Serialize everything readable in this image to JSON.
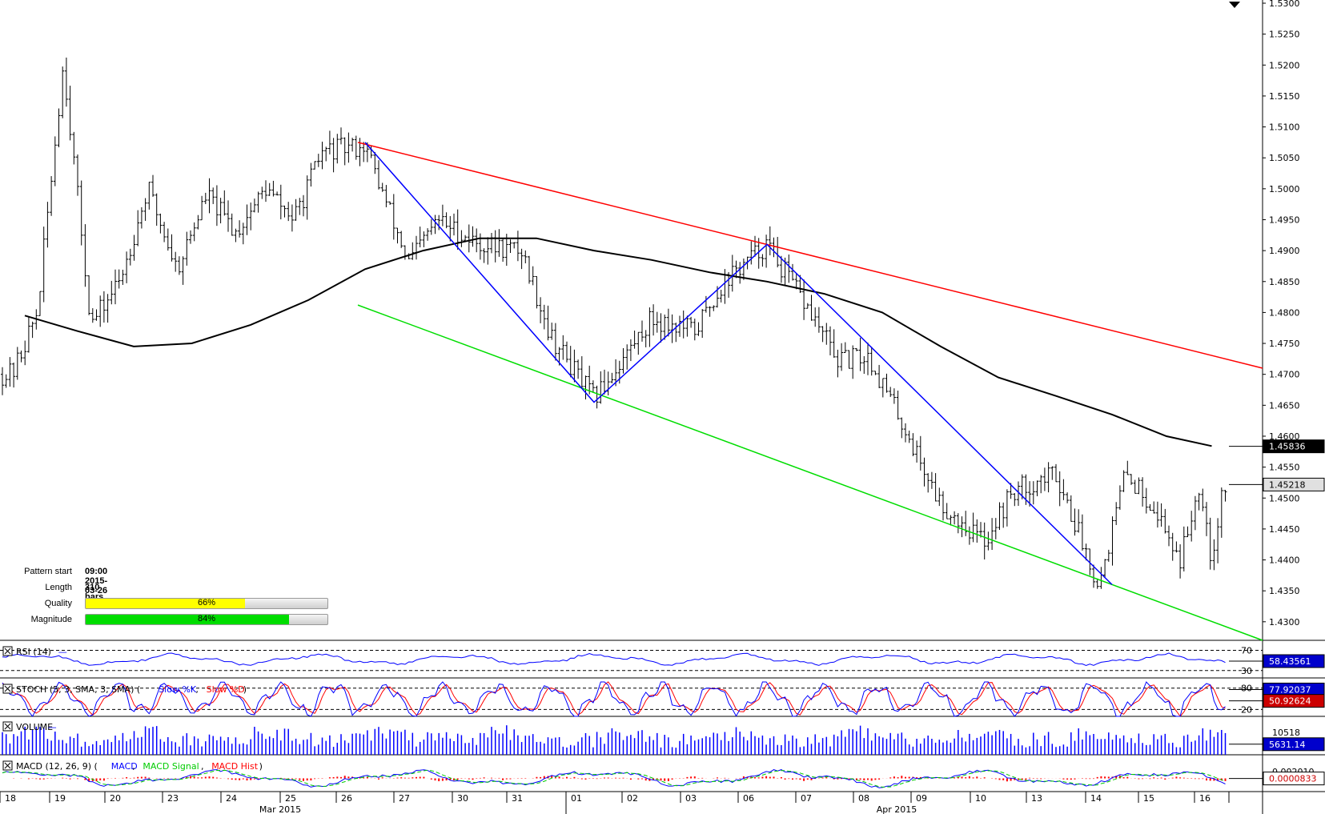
{
  "chart_data": {
    "type": "candlestick",
    "main": {
      "ylim": [
        1.427,
        1.53
      ],
      "y_ticks": [
        "1.5300",
        "1.5250",
        "1.5200",
        "1.5150",
        "1.5100",
        "1.5050",
        "1.5000",
        "1.4950",
        "1.4900",
        "1.4850",
        "1.4800",
        "1.4750",
        "1.4700",
        "1.4650",
        "1.4600",
        "1.4550",
        "1.4500",
        "1.4450",
        "1.4400",
        "1.4350",
        "1.4300"
      ],
      "last_price_label": "1.45218",
      "moving_average_label": "1.45836",
      "moving_average_color": "#000000",
      "resistance_line_color": "#ff0000",
      "support_line_color": "#00dd00",
      "zigzag_color": "#0000ff"
    },
    "pattern": {
      "start_label": "Pattern start",
      "start_value": "09:00 2015-03-26",
      "length_label": "Length",
      "length_value": "310 bars",
      "quality_label": "Quality",
      "quality_value": 66,
      "quality_text": "66%",
      "quality_color": "#ffff00",
      "magnitude_label": "Magnitude",
      "magnitude_value": 84,
      "magnitude_text": "84%",
      "magnitude_color": "#00dd00"
    },
    "indicators": {
      "rsi": {
        "title": "RSI (14)",
        "value": "58.43561",
        "levels": [
          "70",
          "30"
        ],
        "color": "#0000ff"
      },
      "stoch": {
        "title_prefix": "STOCH (5, 3, SMA, 3, SMA) (",
        "title_k": "Slow %K",
        "title_sep": ", ",
        "title_d": "Slow %D",
        "title_suffix": ")",
        "value_k": "77.92037",
        "value_d": "50.92624",
        "levels": [
          "80",
          "20"
        ],
        "k_color": "#0000ff",
        "d_color": "#ff0000"
      },
      "volume": {
        "title": "VOLUME",
        "value": "5631.14",
        "scale": "10518",
        "color": "#0000ff"
      },
      "macd": {
        "title_prefix": "MACD (12, 26, 9) (",
        "title_macd": "MACD",
        "title_sep1": ", ",
        "title_signal": "MACD Signal",
        "title_sep2": ", ",
        "title_hist": "MACD Hist",
        "title_suffix": ")",
        "value": "0.0000833",
        "scale": "0.002010",
        "macd_color": "#0000ff",
        "signal_color": "#00cc00",
        "hist_color": "#ff0000"
      }
    },
    "x_axis": {
      "day_labels": [
        "18",
        "19",
        "20",
        "23",
        "24",
        "25",
        "26",
        "27",
        "30",
        "31",
        "01",
        "02",
        "03",
        "06",
        "07",
        "08",
        "09",
        "10",
        "13",
        "14",
        "15",
        "16"
      ],
      "month_labels": [
        "Mar 2015",
        "Apr 2015"
      ]
    },
    "guide_lines": [
      {
        "name": "resistance",
        "from": [
          "2015-03-26 09:00",
          1.5075
        ],
        "to": [
          "2015-04-16 end",
          1.471
        ]
      },
      {
        "name": "support",
        "from": [
          "2015-03-26 09:00",
          1.4812
        ],
        "to": [
          "2015-04-16 end",
          1.427
        ]
      },
      {
        "name": "zigzag",
        "points": [
          [
            "2015-03-26",
            1.5075
          ],
          [
            "2015-04-01",
            1.4655
          ],
          [
            "2015-04-06",
            1.491
          ],
          [
            "2015-04-14",
            1.436
          ]
        ]
      }
    ],
    "price_path_anchors": [
      [
        "2015-03-18",
        1.47
      ],
      [
        "2015-03-18",
        1.48
      ],
      [
        "2015-03-19",
        1.5205
      ],
      [
        "2015-03-19",
        1.478
      ],
      [
        "2015-03-20",
        1.485
      ],
      [
        "2015-03-20",
        1.5
      ],
      [
        "2015-03-23",
        1.487
      ],
      [
        "2015-03-23",
        1.499
      ],
      [
        "2015-03-24",
        1.493
      ],
      [
        "2015-03-24",
        1.5
      ],
      [
        "2015-03-25",
        1.495
      ],
      [
        "2015-03-25",
        1.506
      ],
      [
        "2015-03-26",
        1.507
      ],
      [
        "2015-03-27",
        1.488
      ],
      [
        "2015-03-27",
        1.495
      ],
      [
        "2015-03-30",
        1.491
      ],
      [
        "2015-03-31",
        1.49
      ],
      [
        "2015-03-31",
        1.476
      ],
      [
        "2015-04-01",
        1.466
      ],
      [
        "2015-04-02",
        1.479
      ],
      [
        "2015-04-03",
        1.477
      ],
      [
        "2015-04-03",
        1.485
      ],
      [
        "2015-04-06",
        1.491
      ],
      [
        "2015-04-07",
        1.48
      ],
      [
        "2015-04-07",
        1.472
      ],
      [
        "2015-04-08",
        1.473
      ],
      [
        "2015-04-08",
        1.464
      ],
      [
        "2015-04-09",
        1.449
      ],
      [
        "2015-04-10",
        1.443
      ],
      [
        "2015-04-10",
        1.451
      ],
      [
        "2015-04-13",
        1.454
      ],
      [
        "2015-04-14",
        1.436
      ],
      [
        "2015-04-14",
        1.454
      ],
      [
        "2015-04-15",
        1.449
      ],
      [
        "2015-04-15",
        1.44
      ],
      [
        "2015-04-16",
        1.453
      ],
      [
        "2015-04-16",
        1.44
      ],
      [
        "2015-04-16",
        1.4522
      ]
    ],
    "moving_average_anchors": [
      [
        "2015-03-18",
        1.4795
      ],
      [
        "2015-03-19",
        1.477
      ],
      [
        "2015-03-20",
        1.4745
      ],
      [
        "2015-03-23",
        1.475
      ],
      [
        "2015-03-24",
        1.478
      ],
      [
        "2015-03-25",
        1.482
      ],
      [
        "2015-03-26",
        1.487
      ],
      [
        "2015-03-27",
        1.49
      ],
      [
        "2015-03-30",
        1.492
      ],
      [
        "2015-03-31",
        1.492
      ],
      [
        "2015-04-01",
        1.49
      ],
      [
        "2015-04-02",
        1.4885
      ],
      [
        "2015-04-03",
        1.4865
      ],
      [
        "2015-04-06",
        1.485
      ],
      [
        "2015-04-07",
        1.483
      ],
      [
        "2015-04-08",
        1.48
      ],
      [
        "2015-04-09",
        1.4745
      ],
      [
        "2015-04-10",
        1.4695
      ],
      [
        "2015-04-13",
        1.4665
      ],
      [
        "2015-04-14",
        1.4635
      ],
      [
        "2015-04-15",
        1.46
      ],
      [
        "2015-04-16",
        1.4584
      ]
    ]
  }
}
